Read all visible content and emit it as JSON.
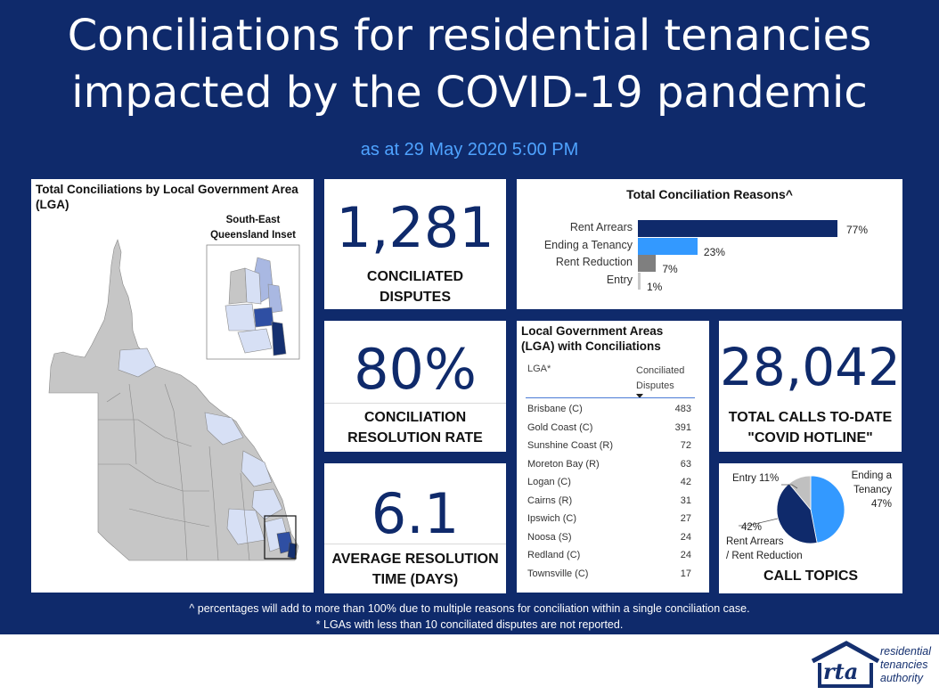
{
  "header": {
    "title_line1": "Conciliations for residential tenancies",
    "title_line2": "impacted by the COVID-19 pandemic",
    "as_at": "as at 29 May 2020 5:00 PM"
  },
  "map_card": {
    "title": "Total Conciliations by Local Government Area (LGA)",
    "inset_label_line1": "South-East",
    "inset_label_line2": "Queensland Inset",
    "colors": {
      "no_data": "#c6c6c6",
      "low": "#d7e0f5",
      "mid": "#a9b8e2",
      "high": "#2f4fa3",
      "highest": "#15306f"
    }
  },
  "kpis": {
    "conciliated": {
      "value": "1,281",
      "label_line1": "CONCILIATED",
      "label_line2": "DISPUTES"
    },
    "resolution_rate": {
      "value": "80%",
      "label_line1": "CONCILIATION",
      "label_line2": "RESOLUTION RATE"
    },
    "avg_time": {
      "value": "6.1",
      "label_line1": "AVERAGE RESOLUTION",
      "label_line2": "TIME (DAYS)"
    },
    "calls": {
      "value": "28,042",
      "label_line1": "TOTAL CALLS TO-DATE",
      "label_line2": "\"COVID HOTLINE\""
    }
  },
  "reasons_card": {
    "title": "Total Conciliation Reasons^"
  },
  "lga_card": {
    "title_line1": "Local Government Areas",
    "title_line2": "(LGA) with Conciliations",
    "col_lga": "LGA*",
    "col_disputes_line1": "Conciliated",
    "col_disputes_line2": "Disputes",
    "rows": [
      {
        "name": "Brisbane (C)",
        "value": "483"
      },
      {
        "name": "Gold Coast (C)",
        "value": "391"
      },
      {
        "name": "Sunshine Coast (R)",
        "value": "72"
      },
      {
        "name": "Moreton Bay (R)",
        "value": "63"
      },
      {
        "name": "Logan (C)",
        "value": "42"
      },
      {
        "name": "Cairns (R)",
        "value": "31"
      },
      {
        "name": "Ipswich (C)",
        "value": "27"
      },
      {
        "name": "Noosa (S)",
        "value": "24"
      },
      {
        "name": "Redland (C)",
        "value": "24"
      },
      {
        "name": "Townsville (C)",
        "value": "17"
      }
    ]
  },
  "call_topics": {
    "title": "CALL TOPICS",
    "label_entry": "Entry",
    "label_entry_pct": "11%",
    "label_ending_line1": "Ending a",
    "label_ending_line2": "Tenancy",
    "label_ending_pct": "47%",
    "label_rent_pct": "42%",
    "label_rent_line1": "Rent Arrears",
    "label_rent_line2": "/ Rent Reduction"
  },
  "footer": {
    "note1": "^ percentages will add to more than 100% due to multiple reasons for conciliation within a single conciliation case.",
    "note2": "* LGAs with less than 10 conciliated disputes are not reported.",
    "logo_text": "rta",
    "org_line1": "residential",
    "org_line2": "tenancies",
    "org_line3": "authority"
  },
  "chart_data": [
    {
      "type": "bar",
      "orientation": "horizontal",
      "title": "Total Conciliation Reasons^",
      "categories": [
        "Rent Arrears",
        "Ending a Tenancy",
        "Rent Reduction",
        "Entry"
      ],
      "values": [
        77,
        23,
        7,
        1
      ],
      "value_labels": [
        "77%",
        "23%",
        "7%",
        "1%"
      ],
      "colors": [
        "#0f2a6b",
        "#3399ff",
        "#7f7f7f",
        "#c8c8c8"
      ],
      "xlim": [
        0,
        77
      ],
      "grid": false
    },
    {
      "type": "pie",
      "title": "CALL TOPICS",
      "categories": [
        "Ending a Tenancy",
        "Rent Arrears / Rent Reduction",
        "Entry"
      ],
      "values": [
        47,
        42,
        11
      ],
      "colors": [
        "#3399ff",
        "#0f2a6b",
        "#c0c0c0"
      ]
    },
    {
      "type": "table",
      "title": "Local Government Areas (LGA) with Conciliations",
      "columns": [
        "LGA*",
        "Conciliated Disputes"
      ],
      "rows": [
        [
          "Brisbane (C)",
          483
        ],
        [
          "Gold Coast (C)",
          391
        ],
        [
          "Sunshine Coast (R)",
          72
        ],
        [
          "Moreton Bay (R)",
          63
        ],
        [
          "Logan (C)",
          42
        ],
        [
          "Cairns (R)",
          31
        ],
        [
          "Ipswich (C)",
          27
        ],
        [
          "Noosa (S)",
          24
        ],
        [
          "Redland (C)",
          24
        ],
        [
          "Townsville (C)",
          17
        ]
      ]
    }
  ]
}
